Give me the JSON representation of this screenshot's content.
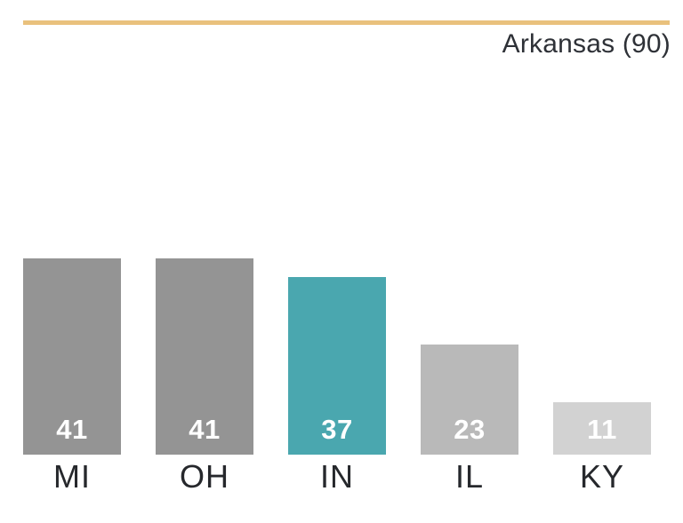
{
  "title": "Arkansas (90)",
  "accent_rule_color": "#e9c17d",
  "chart_data": {
    "type": "bar",
    "title": "Arkansas (90)",
    "categories": [
      "MI",
      "OH",
      "IN",
      "IL",
      "KY"
    ],
    "values": [
      41,
      41,
      37,
      23,
      11
    ],
    "bar_colors": [
      "#949494",
      "#949494",
      "#4aa7af",
      "#b9b9b9",
      "#d2d2d2"
    ],
    "highlighted_category": "IN",
    "highlight_color": "#4aa7af",
    "value_label_color": "#ffffff",
    "axis_label_color": "#26282c",
    "xlabel": "",
    "ylabel": "",
    "ylim": [
      0,
      41
    ],
    "grid": false,
    "legend": false,
    "value_labels_position": "inside-bottom",
    "x_axis_shown": false,
    "y_axis_shown": false
  }
}
